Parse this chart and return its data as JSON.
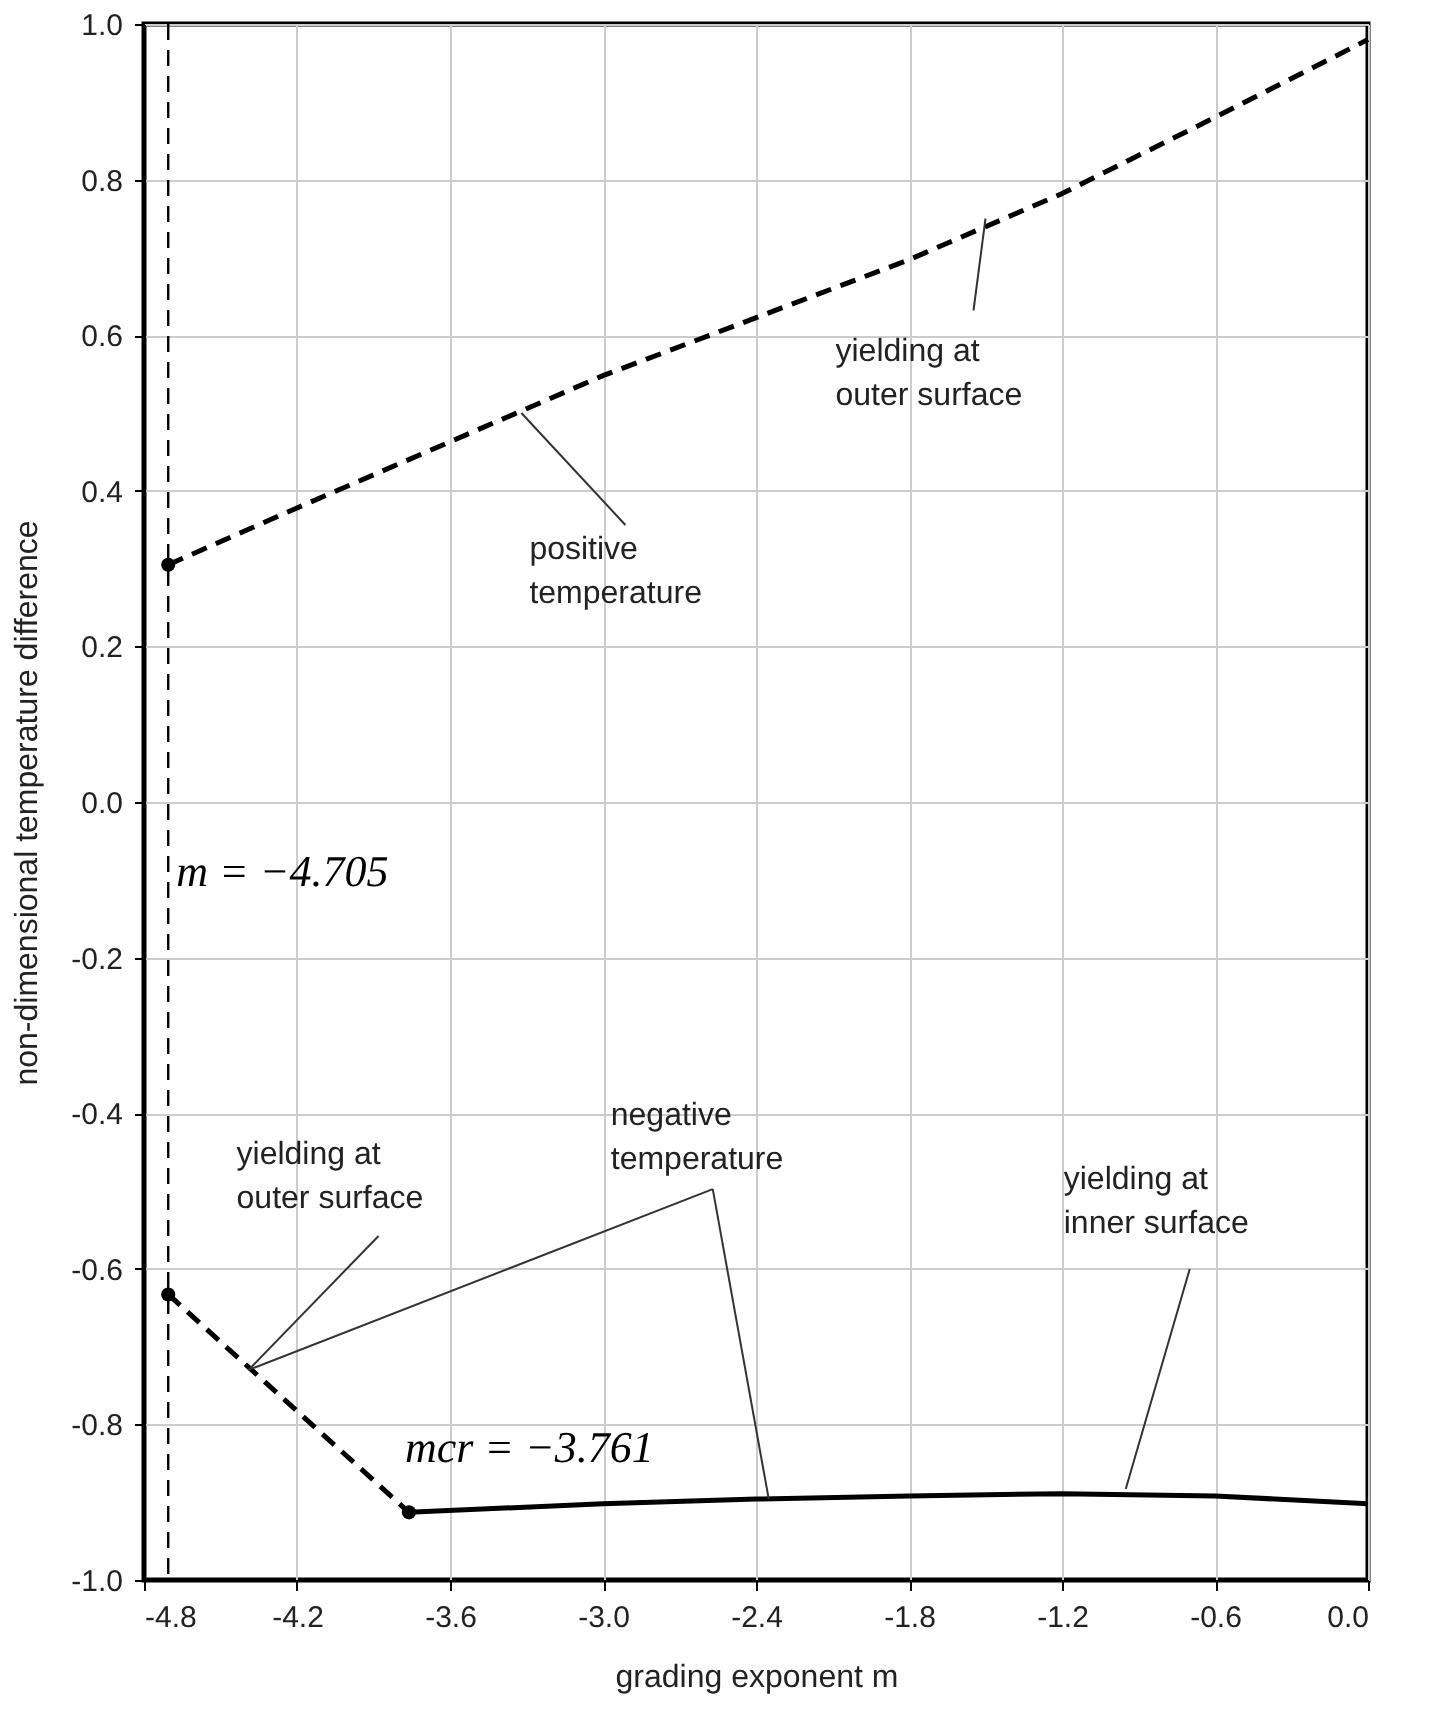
{
  "chart_data": {
    "type": "line",
    "xlabel": "grading exponent m",
    "ylabel": "non-dimensional temperature difference",
    "xlim": [
      -4.8,
      0.0
    ],
    "ylim": [
      -1.0,
      1.0
    ],
    "xticks": [
      {
        "value": -4.8,
        "label": "-4.8"
      },
      {
        "value": -4.2,
        "label": "-4.2"
      },
      {
        "value": -3.6,
        "label": "-3.6"
      },
      {
        "value": -3.0,
        "label": "-3.0"
      },
      {
        "value": -2.4,
        "label": "-2.4"
      },
      {
        "value": -1.8,
        "label": "-1.8"
      },
      {
        "value": -1.2,
        "label": "-1.2"
      },
      {
        "value": -0.6,
        "label": "-0.6"
      },
      {
        "value": 0.0,
        "label": "0.0"
      }
    ],
    "yticks": [
      {
        "value": -1.0,
        "label": "-1.0"
      },
      {
        "value": -0.8,
        "label": "-0.8"
      },
      {
        "value": -0.6,
        "label": "-0.6"
      },
      {
        "value": -0.4,
        "label": "-0.4"
      },
      {
        "value": -0.2,
        "label": "-0.2"
      },
      {
        "value": 0.0,
        "label": "0.0"
      },
      {
        "value": 0.2,
        "label": "0.2"
      },
      {
        "value": 0.4,
        "label": "0.4"
      },
      {
        "value": 0.6,
        "label": "0.6"
      },
      {
        "value": 0.8,
        "label": "0.8"
      },
      {
        "value": 1.0,
        "label": "1.0"
      }
    ],
    "grid": true,
    "series": [
      {
        "color": "#000000",
        "line_style": "dashed",
        "marker": "none",
        "x": [
          -4.705,
          -4.2,
          -3.0,
          -1.8,
          -1.2,
          -0.6,
          0.0
        ],
        "values": [
          0.305,
          0.378,
          0.548,
          0.697,
          0.782,
          0.88,
          0.98
        ]
      },
      {
        "color": "#000000",
        "line_style": "dashed",
        "marker": "none",
        "x": [
          -4.705,
          -3.761
        ],
        "values": [
          -0.633,
          -0.913
        ]
      },
      {
        "color": "#000000",
        "line_style": "solid",
        "marker": "none",
        "x": [
          -3.761,
          -3.0,
          -2.4,
          -1.8,
          -1.2,
          -0.6,
          0.0
        ],
        "values": [
          -0.913,
          -0.902,
          -0.896,
          -0.892,
          -0.889,
          -0.892,
          -0.902
        ]
      },
      {
        "type": "scatter",
        "color": "#000000",
        "marker": "circle",
        "x": [
          -4.705,
          -4.705,
          -3.761
        ],
        "values": [
          0.305,
          -0.633,
          -0.913
        ]
      }
    ],
    "ref_lines": [
      {
        "axis": "x",
        "value": -4.705,
        "label": "m = −4.705",
        "line_style": "dashed",
        "color": "#000000"
      }
    ],
    "annotations": [
      {
        "text": "yielding at\nouter surface",
        "x": -1.5,
        "y": 0.75
      },
      {
        "text": "positive\ntemperature",
        "x": -3.32,
        "y": 0.5
      },
      {
        "text": "yielding at\nouter surface",
        "x": -4.39,
        "y": -0.73
      },
      {
        "text": "negative\ntemperature",
        "x": -2.35,
        "y": -0.896
      },
      {
        "text": "yielding at\ninner surface",
        "x": -0.95,
        "y": -0.883
      },
      {
        "text": "mcr = −3.761",
        "x": -3.761,
        "y": -0.913
      }
    ]
  }
}
